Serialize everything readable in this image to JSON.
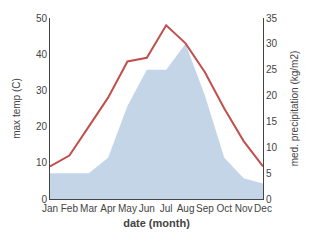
{
  "chart_data": {
    "type": "line",
    "xlabel": "date (month)",
    "ylabel": "max temp (C)",
    "y2label": "med. precipitation (kg/m2)",
    "categories": [
      "Jan",
      "Feb",
      "Mar",
      "Apr",
      "May",
      "Jun",
      "Jul",
      "Aug",
      "Sep",
      "Oct",
      "Nov",
      "Dec"
    ],
    "series": [
      {
        "type": "area",
        "color": "#c5d5e8",
        "axis": "y2",
        "values": [
          5,
          5,
          5,
          8,
          18,
          25,
          25,
          30,
          20,
          8,
          4,
          3
        ]
      },
      {
        "type": "line",
        "color": "#c0504d",
        "values": [
          9,
          12,
          20,
          28,
          38,
          39,
          48,
          43,
          35,
          25,
          16,
          9
        ]
      }
    ],
    "ylim": [
      0,
      50
    ],
    "yticks": [
      0,
      10,
      20,
      30,
      40,
      50
    ],
    "y2lim": [
      0,
      35
    ],
    "y2ticks": [
      0,
      5,
      10,
      15,
      20,
      25,
      30,
      35
    ],
    "grid": false
  }
}
